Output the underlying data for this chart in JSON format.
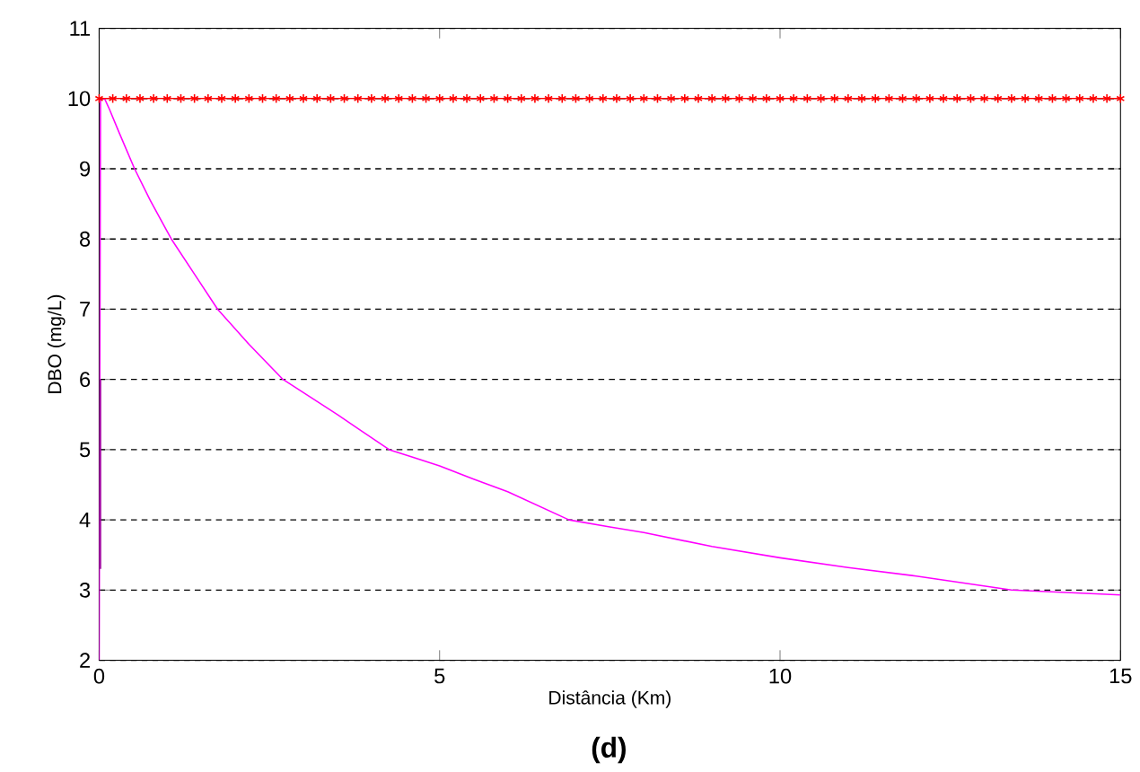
{
  "chart_data": {
    "type": "line",
    "xlabel": "Distância (Km)",
    "ylabel": "DBO (mg/L)",
    "annotations": [
      "(d)"
    ],
    "xlim": [
      0,
      15
    ],
    "ylim": [
      2,
      11
    ],
    "xticks": [
      0,
      5,
      10,
      15
    ],
    "yticks": [
      2,
      3,
      4,
      5,
      6,
      7,
      8,
      9,
      10,
      11
    ],
    "grid": "y",
    "line_style": "solid",
    "series": [
      {
        "color": "#ff00ff",
        "marker": "none",
        "x": [
          0,
          0.02,
          0.08,
          0.15,
          0.3,
          0.52,
          0.75,
          1.06,
          1.4,
          1.74,
          2.2,
          2.7,
          3.1,
          3.5,
          3.8,
          4.26,
          5,
          5.5,
          6,
          6.9,
          7.5,
          8,
          9,
          10,
          11,
          12,
          13.4,
          15
        ],
        "values": [
          2,
          10,
          10,
          9.85,
          9.5,
          9,
          8.55,
          8,
          7.5,
          7,
          6.5,
          6,
          5.75,
          5.5,
          5.3,
          5,
          4.77,
          4.58,
          4.4,
          4,
          3.9,
          3.82,
          3.62,
          3.46,
          3.32,
          3.2,
          3,
          2.93
        ]
      },
      {
        "color": "#990099",
        "marker": "none",
        "x": [
          0.02,
          0.02
        ],
        "values": [
          3.3,
          6
        ]
      },
      {
        "color": "#ff0000",
        "marker": "cross",
        "x": [
          0,
          0.2,
          0.4,
          0.6,
          0.8,
          1,
          1.2,
          1.4,
          1.6,
          1.8,
          2,
          2.2,
          2.4,
          2.6,
          2.8,
          3,
          3.2,
          3.4,
          3.6,
          3.8,
          4,
          4.2,
          4.4,
          4.6,
          4.8,
          5,
          5.2,
          5.4,
          5.6,
          5.8,
          6,
          6.2,
          6.4,
          6.6,
          6.8,
          7,
          7.2,
          7.4,
          7.6,
          7.8,
          8,
          8.2,
          8.4,
          8.6,
          8.8,
          9,
          9.2,
          9.4,
          9.6,
          9.8,
          10,
          10.2,
          10.4,
          10.6,
          10.8,
          11,
          11.2,
          11.4,
          11.6,
          11.8,
          12,
          12.2,
          12.4,
          12.6,
          12.8,
          13,
          13.2,
          13.4,
          13.6,
          13.8,
          14,
          14.2,
          14.4,
          14.6,
          14.8,
          15
        ],
        "values": [
          10,
          10,
          10,
          10,
          10,
          10,
          10,
          10,
          10,
          10,
          10,
          10,
          10,
          10,
          10,
          10,
          10,
          10,
          10,
          10,
          10,
          10,
          10,
          10,
          10,
          10,
          10,
          10,
          10,
          10,
          10,
          10,
          10,
          10,
          10,
          10,
          10,
          10,
          10,
          10,
          10,
          10,
          10,
          10,
          10,
          10,
          10,
          10,
          10,
          10,
          10,
          10,
          10,
          10,
          10,
          10,
          10,
          10,
          10,
          10,
          10,
          10,
          10,
          10,
          10,
          10,
          10,
          10,
          10,
          10,
          10,
          10,
          10,
          10,
          10,
          10
        ]
      }
    ]
  }
}
